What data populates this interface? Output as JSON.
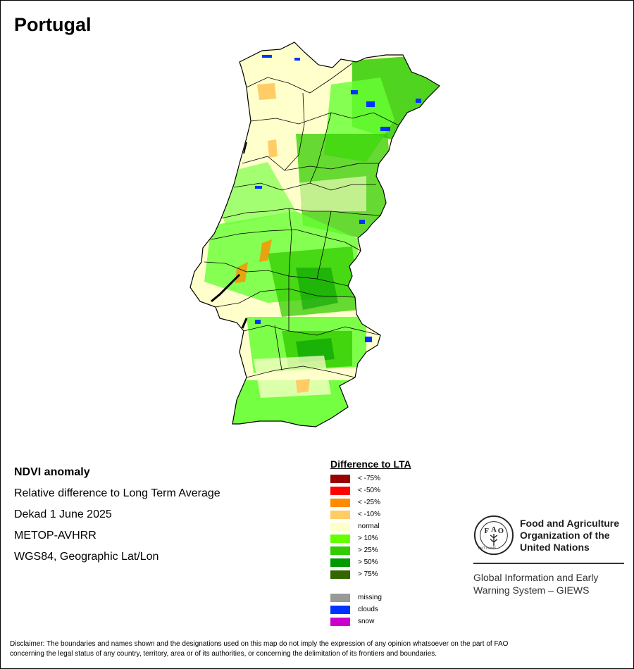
{
  "header": {
    "title": "Portugal"
  },
  "map": {
    "icon": "portugal-ndvi-anomaly-map",
    "colors": {
      "normal": "#ffffcc",
      "gt10": "#66ff33",
      "gt25": "#33cc00",
      "gt50": "#009900",
      "clouds": "#0033ff",
      "lt10": "#ffcc66",
      "lt25": "#ff8c00",
      "border": "#000000"
    }
  },
  "info": {
    "line1": "NDVI anomaly",
    "line2": "Relative difference to Long Term Average",
    "line3": "Dekad 1 June 2025",
    "line4": "METOP-AVHRR",
    "line5": "WGS84, Geographic Lat/Lon"
  },
  "legend": {
    "title": "Difference to LTA",
    "classes": [
      {
        "label": "< -75%",
        "color": "#990000"
      },
      {
        "label": "< -50%",
        "color": "#ff0000"
      },
      {
        "label": "< -25%",
        "color": "#ff8c00"
      },
      {
        "label": "< -10%",
        "color": "#ffcc66"
      },
      {
        "label": "normal",
        "color": "#ffffcc"
      },
      {
        "label": "> 10%",
        "color": "#66ff00"
      },
      {
        "label": "> 25%",
        "color": "#33cc00"
      },
      {
        "label": "> 50%",
        "color": "#009900"
      },
      {
        "label": "> 75%",
        "color": "#336600"
      }
    ],
    "special": [
      {
        "label": "missing",
        "color": "#999999"
      },
      {
        "label": "clouds",
        "color": "#0033ff"
      },
      {
        "label": "snow",
        "color": "#cc00cc"
      }
    ]
  },
  "logo": {
    "icon": "fao-logo-icon",
    "org_line1": "Food and Agriculture",
    "org_line2": "Organization of the",
    "org_line3": "United Nations",
    "giews_line1": "Global Information and Early",
    "giews_line2": "Warning System – GIEWS",
    "seal_text": "FIAT PANIS"
  },
  "footer": {
    "disclaimer_line1": "Disclaimer: The boundaries and names shown and the designations used on this map do not imply the expression of any opinion whatsoever on the part of FAO",
    "disclaimer_line2": "concerning the legal status of any country, territory, area or of its authorities, or concerning the delimitation of its frontiers and boundaries."
  }
}
